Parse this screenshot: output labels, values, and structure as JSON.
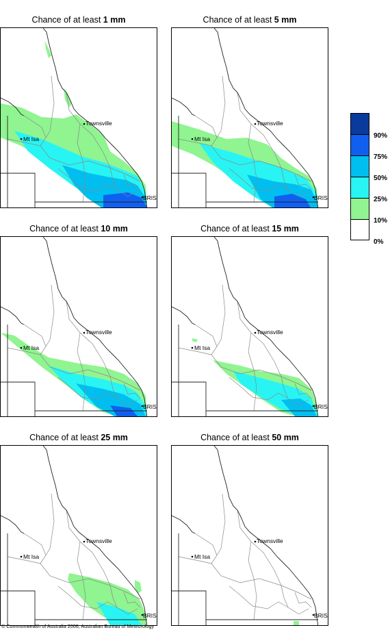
{
  "panels": [
    {
      "title_prefix": "Chance of at least ",
      "amount": "1 mm",
      "level": 1
    },
    {
      "title_prefix": "Chance of at least ",
      "amount": "5 mm",
      "level": 2
    },
    {
      "title_prefix": "Chance of at least ",
      "amount": "10 mm",
      "level": 3
    },
    {
      "title_prefix": "Chance of at least ",
      "amount": "15 mm",
      "level": 4
    },
    {
      "title_prefix": "Chance of at least ",
      "amount": "25 mm",
      "level": 5
    },
    {
      "title_prefix": "Chance of at least ",
      "amount": "50 mm",
      "level": 6
    }
  ],
  "places": {
    "townsville": "Townsville",
    "mt_isa": "Mt Isa",
    "brisbane": "BRIS"
  },
  "legend": {
    "labels": [
      "90%",
      "75%",
      "50%",
      "25%",
      "10%",
      "0%"
    ],
    "colors": [
      "#0a3a9c",
      "#1060f0",
      "#00bff0",
      "#28f4f4",
      "#90f490",
      "#ffffff"
    ]
  },
  "copyright": "© Commonwealth of Australia 2006, Australian Bureau of Meteorology"
}
